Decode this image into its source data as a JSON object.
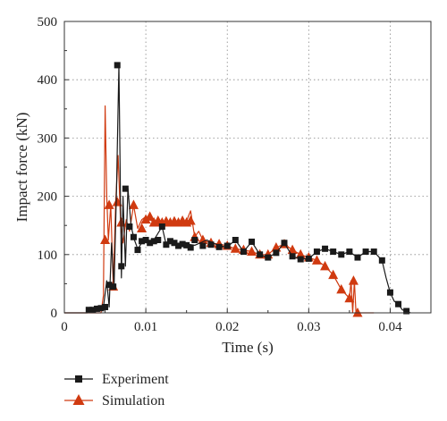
{
  "chart_data": {
    "type": "line",
    "xlabel": "Time (s)",
    "ylabel": "Impact force (kN)",
    "xlim": [
      0,
      0.045
    ],
    "ylim": [
      0,
      500
    ],
    "xticks": [
      0,
      0.01,
      0.02,
      0.03,
      0.04
    ],
    "xtick_labels": [
      "0",
      "0.01",
      "0.02",
      "0.03",
      "0.04"
    ],
    "yticks": [
      0,
      100,
      200,
      300,
      400,
      500
    ],
    "ytick_labels": [
      "0",
      "100",
      "200",
      "300",
      "400",
      "500"
    ],
    "grid": "dotted",
    "legend_position": "bottom",
    "series": [
      {
        "name": "Experiment",
        "color": "#1a1a1a",
        "marker": "square",
        "marker_x": [
          0.003,
          0.0035,
          0.004,
          0.0045,
          0.005,
          0.0055,
          0.006,
          0.0065,
          0.007,
          0.0075,
          0.008,
          0.0085,
          0.009,
          0.0095,
          0.01,
          0.0105,
          0.011,
          0.0115,
          0.012,
          0.0125,
          0.013,
          0.0135,
          0.014,
          0.0145,
          0.015,
          0.0155,
          0.016,
          0.017,
          0.018,
          0.019,
          0.02,
          0.021,
          0.022,
          0.023,
          0.024,
          0.025,
          0.026,
          0.027,
          0.028,
          0.029,
          0.03,
          0.031,
          0.032,
          0.033,
          0.034,
          0.035,
          0.036,
          0.037,
          0.038,
          0.039,
          0.04,
          0.041,
          0.042
        ],
        "marker_y": [
          5,
          5,
          7,
          8,
          10,
          48,
          45,
          425,
          80,
          213,
          148,
          130,
          108,
          123,
          125,
          120,
          123,
          125,
          148,
          117,
          123,
          120,
          115,
          118,
          116,
          112,
          125,
          115,
          117,
          113,
          115,
          125,
          105,
          122,
          100,
          95,
          103,
          120,
          97,
          92,
          93,
          105,
          110,
          105,
          100,
          105,
          95,
          105,
          105,
          90,
          35,
          15,
          3
        ],
        "line_x": [
          0.0,
          0.0028,
          0.0032,
          0.004,
          0.0048,
          0.0052,
          0.0055,
          0.0058,
          0.0061,
          0.0064,
          0.0067,
          0.007,
          0.0072,
          0.0075,
          0.0078,
          0.0082,
          0.0086,
          0.009,
          0.0095,
          0.01,
          0.011,
          0.012,
          0.0125,
          0.013,
          0.014,
          0.015,
          0.016,
          0.0175,
          0.019,
          0.02,
          0.021,
          0.022,
          0.023,
          0.024,
          0.025,
          0.026,
          0.027,
          0.028,
          0.029,
          0.03,
          0.031,
          0.032,
          0.033,
          0.034,
          0.035,
          0.036,
          0.037,
          0.038,
          0.039,
          0.0395,
          0.04,
          0.0405,
          0.041,
          0.0415,
          0.042,
          0.0425
        ],
        "line_y": [
          0,
          0,
          5,
          7,
          10,
          55,
          10,
          120,
          45,
          210,
          425,
          60,
          200,
          80,
          213,
          148,
          125,
          110,
          120,
          123,
          125,
          148,
          117,
          123,
          115,
          118,
          116,
          125,
          115,
          113,
          125,
          105,
          122,
          100,
          95,
          103,
          120,
          97,
          92,
          93,
          105,
          110,
          105,
          100,
          105,
          95,
          105,
          105,
          90,
          60,
          35,
          20,
          15,
          5,
          3,
          0
        ]
      },
      {
        "name": "Simulation",
        "color": "#d03a10",
        "marker": "triangle",
        "marker_x": [
          0.005,
          0.0055,
          0.006,
          0.0065,
          0.007,
          0.0085,
          0.0095,
          0.01,
          0.0105,
          0.011,
          0.0115,
          0.012,
          0.0125,
          0.013,
          0.0135,
          0.014,
          0.0145,
          0.015,
          0.0155,
          0.016,
          0.017,
          0.018,
          0.019,
          0.02,
          0.021,
          0.022,
          0.023,
          0.024,
          0.025,
          0.026,
          0.027,
          0.028,
          0.029,
          0.03,
          0.031,
          0.032,
          0.033,
          0.034,
          0.035,
          0.0355,
          0.036
        ],
        "marker_y": [
          125,
          185,
          45,
          190,
          155,
          185,
          145,
          160,
          165,
          155,
          158,
          155,
          157,
          155,
          157,
          155,
          158,
          155,
          158,
          130,
          125,
          120,
          118,
          115,
          110,
          108,
          105,
          100,
          100,
          112,
          118,
          108,
          100,
          95,
          90,
          80,
          65,
          40,
          25,
          55,
          0
        ],
        "line_x": [
          0.0,
          0.0045,
          0.0048,
          0.005,
          0.0052,
          0.0054,
          0.0057,
          0.006,
          0.0063,
          0.0066,
          0.0069,
          0.0072,
          0.0076,
          0.008,
          0.0085,
          0.009,
          0.0095,
          0.01,
          0.011,
          0.012,
          0.013,
          0.014,
          0.015,
          0.0155,
          0.016,
          0.0165,
          0.017,
          0.018,
          0.019,
          0.02,
          0.021,
          0.022,
          0.023,
          0.024,
          0.025,
          0.026,
          0.027,
          0.028,
          0.029,
          0.03,
          0.031,
          0.032,
          0.033,
          0.034,
          0.035,
          0.0352,
          0.0354,
          0.0356,
          0.0358,
          0.036,
          0.038
        ],
        "line_y": [
          0,
          0,
          30,
          355,
          200,
          125,
          185,
          45,
          190,
          270,
          155,
          120,
          160,
          140,
          185,
          145,
          160,
          165,
          155,
          158,
          157,
          155,
          158,
          175,
          130,
          140,
          125,
          120,
          118,
          115,
          110,
          108,
          105,
          100,
          100,
          112,
          118,
          108,
          100,
          95,
          90,
          80,
          65,
          40,
          25,
          55,
          0,
          55,
          0,
          0,
          0
        ]
      }
    ]
  }
}
